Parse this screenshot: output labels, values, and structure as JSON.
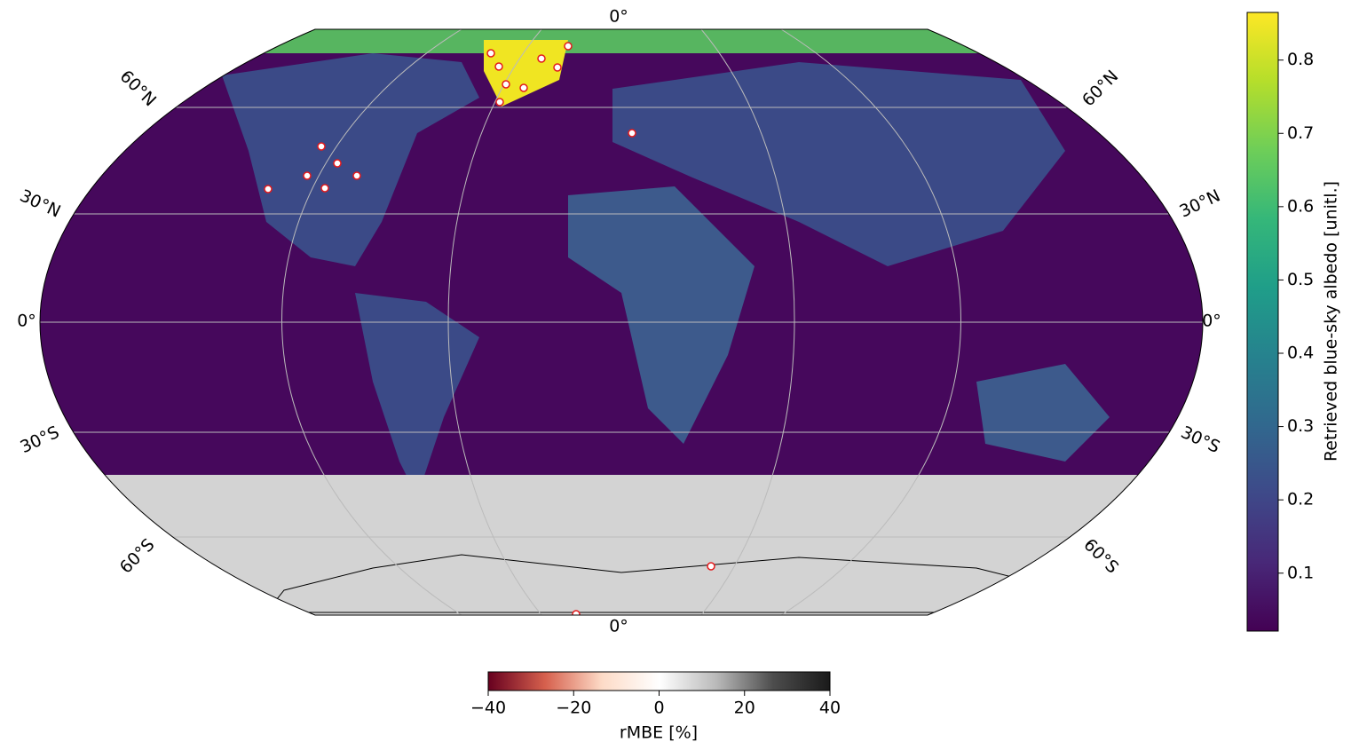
{
  "map": {
    "graticule_labels": [
      "0°",
      "0°",
      "60°N",
      "30°N",
      "0°",
      "30°S",
      "60°S",
      "60°N",
      "30°N",
      "0°",
      "30°S",
      "60°S"
    ]
  },
  "colorbar": {
    "label": "Retrieved blue-sky albedo [unitl.]",
    "range": [
      0.021,
      0.865
    ],
    "ticks": [
      0.1,
      0.2,
      0.3,
      0.4,
      0.5,
      0.6,
      0.7,
      0.8
    ],
    "colormap": [
      "#440154",
      "#482878",
      "#3e4989",
      "#31688e",
      "#26828e",
      "#1f9e89",
      "#35b779",
      "#6ece58",
      "#b5de2b",
      "#fde725"
    ]
  },
  "rmbe_colorbar": {
    "label": "rMBE [%]",
    "range": [
      -40,
      40
    ],
    "ticks": [
      {
        "value": -40,
        "label": "−40"
      },
      {
        "value": -20,
        "label": "−20"
      },
      0,
      20,
      40
    ],
    "colormap": [
      "#67001f",
      "#d6604d",
      "#fddbc7",
      "#ffffff",
      "#bababa",
      "#4d4d4d",
      "#1a1a1a"
    ]
  }
}
